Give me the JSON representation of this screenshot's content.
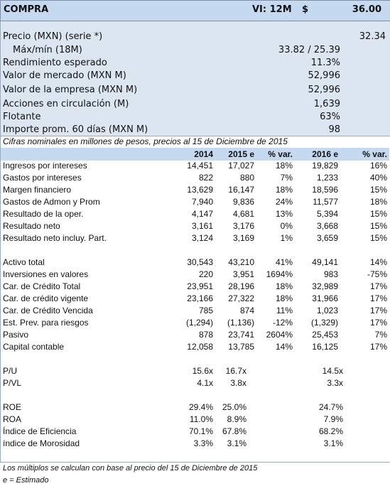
{
  "header": {
    "title": "COMPRA",
    "rating": "VI: 12M",
    "currency": "$",
    "target": "36.00"
  },
  "summary": [
    {
      "label": "Precio (MXN) (serie *)",
      "value": "32.34"
    },
    {
      "label": "Máx/mín (18M)",
      "value": "33.82 / 25.39"
    },
    {
      "label": "Rendimiento esperado",
      "value": "11.3%"
    },
    {
      "label": "Valor de mercado (MXN M)",
      "value": "52,996"
    },
    {
      "label": "Valor de la empresa (MXN M)",
      "value": "52,996"
    },
    {
      "label": "Acciones en circulación (M)",
      "value": "1,639"
    },
    {
      "label": "Flotante",
      "value": "63%"
    },
    {
      "label": "Importe prom. 60 días (MXN M)",
      "value": "98"
    }
  ],
  "note": "Cifras nominales en millones de pesos, precios al 15 de Diciembre de 2015",
  "table": {
    "columns": [
      "2014",
      "2015 e",
      "% var.",
      "2016 e",
      "% var."
    ],
    "groups": [
      [
        {
          "label": "Ingresos por intereses",
          "values": [
            "14,451",
            "17,027",
            "18%",
            "19,829",
            "16%"
          ]
        },
        {
          "label": "Gastos por intereses",
          "values": [
            "822",
            "880",
            "7%",
            "1,233",
            "40%"
          ]
        },
        {
          "label": "Margen financiero",
          "values": [
            "13,629",
            "16,147",
            "18%",
            "18,596",
            "15%"
          ]
        },
        {
          "label": "Gastos de Admon y Prom",
          "values": [
            "7,940",
            "9,836",
            "24%",
            "11,577",
            "18%"
          ]
        },
        {
          "label": "Resultado de la oper.",
          "values": [
            "4,147",
            "4,681",
            "13%",
            "5,394",
            "15%"
          ]
        },
        {
          "label": "Resultado neto",
          "values": [
            "3,161",
            "3,176",
            "0%",
            "3,668",
            "15%"
          ]
        },
        {
          "label": "Resultado neto incluy. Part.",
          "values": [
            "3,124",
            "3,169",
            "1%",
            "3,659",
            "15%"
          ]
        }
      ],
      [
        {
          "label": "Activo total",
          "values": [
            "30,543",
            "43,210",
            "41%",
            "49,141",
            "14%"
          ]
        },
        {
          "label": "Inversiones en valores",
          "values": [
            "220",
            "3,951",
            "1694%",
            "983",
            "-75%"
          ]
        },
        {
          "label": "Car. de Crédito Total",
          "values": [
            "23,951",
            "28,196",
            "18%",
            "32,989",
            "17%"
          ]
        },
        {
          "label": "Car. de crédito vigente",
          "values": [
            "23,166",
            "27,322",
            "18%",
            "31,966",
            "17%"
          ]
        },
        {
          "label": "Car. de Crédito Vencida",
          "values": [
            "785",
            "874",
            "11%",
            "1,023",
            "17%"
          ]
        },
        {
          "label": "Est. Prev. para riesgos",
          "values": [
            "(1,294)",
            "(1,136)",
            "-12%",
            "(1,329)",
            "17%"
          ]
        },
        {
          "label": "Pasivo",
          "values": [
            "878",
            "23,741",
            "2604%",
            "25,453",
            "7%"
          ]
        },
        {
          "label": "Capital contable",
          "values": [
            "12,058",
            "13,785",
            "14%",
            "16,125",
            "17%"
          ]
        }
      ],
      [
        {
          "label": "P/U",
          "values": [
            "15.6x",
            "16.7x",
            null,
            "14.5x",
            null
          ]
        },
        {
          "label": "P/VL",
          "values": [
            "4.1x",
            "3.8x",
            null,
            "3.3x",
            null
          ]
        }
      ],
      [
        {
          "label": "ROE",
          "values": [
            "29.4%",
            "25.0%",
            null,
            "24.7%",
            null
          ]
        },
        {
          "label": "ROA",
          "values": [
            "11.0%",
            "8.9%",
            null,
            "7.9%",
            null
          ]
        },
        {
          "label": "Índice de Eficiencia",
          "values": [
            "70.1%",
            "67.8%",
            null,
            "68.2%",
            null
          ]
        },
        {
          "label": "índice de Morosidad",
          "values": [
            "3.3%",
            "3.1%",
            null,
            "3.1%",
            null
          ]
        }
      ]
    ]
  },
  "footnotes": [
    "Los múltiplos se calculan con base al precio del 15 de Diciembre de 2015",
    "e = Estimado"
  ]
}
